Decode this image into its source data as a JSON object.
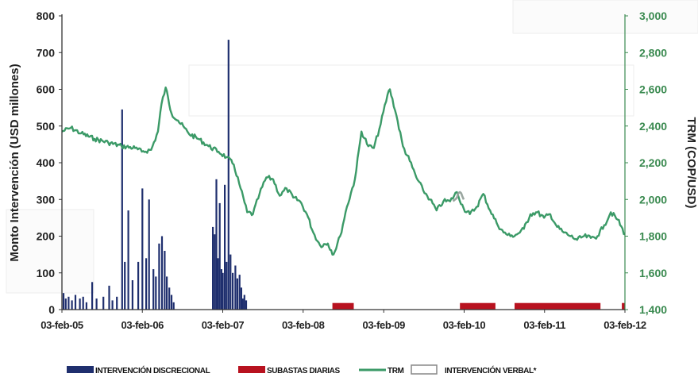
{
  "chart_data": {
    "type": "bar",
    "xlabel": "",
    "ylabel_left": "Monto Intervención (USD millones)",
    "ylabel_right": "TRM (COP/USD)",
    "xlim": [
      "2005-02-03",
      "2012-02-03"
    ],
    "ylim_left": [
      0,
      800
    ],
    "ylim_right": [
      1400,
      3000
    ],
    "x_ticks": [
      "03-feb-05",
      "03-feb-06",
      "03-feb-07",
      "03-feb-08",
      "03-feb-09",
      "03-feb-10",
      "03-feb-11",
      "03-feb-12"
    ],
    "y_ticks_left": [
      "0",
      "100",
      "200",
      "300",
      "400",
      "500",
      "600",
      "700",
      "800"
    ],
    "y_ticks_right": [
      "1,400",
      "1,600",
      "1,800",
      "2,000",
      "2,200",
      "2,400",
      "2,600",
      "2,800",
      "3,000"
    ],
    "grid": false,
    "legend_position": "bottom",
    "colors": {
      "discrecional": "#1f2f6e",
      "subastas": "#b8121f",
      "trm": "#3b9a67",
      "verbal": "#9aa6a0",
      "axis_left": "#222222",
      "axis_right": "#3a8a50"
    },
    "series": [
      {
        "name": "INTERVENCIÓN DISCRECIONAL",
        "type": "bar",
        "axis": "left",
        "x": [
          "2005-02-10",
          "2005-02-20",
          "2005-03-05",
          "2005-03-20",
          "2005-04-05",
          "2005-04-25",
          "2005-05-10",
          "2005-05-25",
          "2005-06-20",
          "2005-07-10",
          "2005-08-10",
          "2005-09-05",
          "2005-09-20",
          "2005-10-10",
          "2005-11-03",
          "2005-11-15",
          "2005-12-01",
          "2005-12-20",
          "2006-01-15",
          "2006-02-03",
          "2006-02-20",
          "2006-03-05",
          "2006-03-25",
          "2006-04-05",
          "2006-04-20",
          "2006-05-03",
          "2006-05-15",
          "2006-05-25",
          "2006-06-05",
          "2006-06-15",
          "2006-06-25",
          "2006-12-20",
          "2006-12-28",
          "2007-01-05",
          "2007-01-12",
          "2007-01-20",
          "2007-01-28",
          "2007-02-03",
          "2007-02-12",
          "2007-02-20",
          "2007-03-01",
          "2007-03-10",
          "2007-03-20",
          "2007-04-01",
          "2007-04-10",
          "2007-04-20",
          "2007-04-28",
          "2007-05-05",
          "2007-05-12",
          "2007-05-20"
        ],
        "values": [
          45,
          30,
          35,
          25,
          40,
          30,
          35,
          20,
          75,
          30,
          35,
          65,
          25,
          35,
          545,
          130,
          270,
          80,
          130,
          330,
          140,
          300,
          110,
          90,
          180,
          200,
          160,
          90,
          60,
          40,
          20,
          225,
          205,
          355,
          140,
          290,
          110,
          100,
          340,
          130,
          735,
          150,
          100,
          120,
          85,
          95,
          60,
          30,
          40,
          25
        ]
      },
      {
        "name": "SUBASTAS DIARIAS",
        "type": "band",
        "axis": "left",
        "height": 18,
        "ranges": [
          [
            "2008-06-15",
            "2008-09-20"
          ],
          [
            "2010-01-15",
            "2010-06-25"
          ],
          [
            "2010-09-20",
            "2011-10-15"
          ],
          [
            "2012-01-20",
            "2012-02-03"
          ]
        ]
      },
      {
        "name": "TRM",
        "type": "line",
        "axis": "right",
        "x": [
          "2005-02-03",
          "2005-03-15",
          "2005-05-01",
          "2005-07-01",
          "2005-09-01",
          "2005-11-01",
          "2006-01-01",
          "2006-02-01",
          "2006-03-15",
          "2006-04-15",
          "2006-05-01",
          "2006-05-20",
          "2006-06-15",
          "2006-07-15",
          "2006-09-01",
          "2006-10-15",
          "2006-12-01",
          "2007-01-15",
          "2007-02-20",
          "2007-03-25",
          "2007-04-25",
          "2007-05-25",
          "2007-06-20",
          "2007-07-20",
          "2007-08-20",
          "2007-09-20",
          "2007-10-20",
          "2007-11-20",
          "2007-12-20",
          "2008-01-20",
          "2008-02-20",
          "2008-03-20",
          "2008-04-20",
          "2008-05-25",
          "2008-06-20",
          "2008-07-20",
          "2008-08-20",
          "2008-09-25",
          "2008-10-25",
          "2008-11-25",
          "2008-12-20",
          "2009-01-20",
          "2009-02-20",
          "2009-03-03",
          "2009-04-01",
          "2009-05-01",
          "2009-06-01",
          "2009-07-01",
          "2009-08-01",
          "2009-09-01",
          "2009-10-01",
          "2009-11-01",
          "2009-12-01",
          "2010-01-01",
          "2010-02-01",
          "2010-03-01",
          "2010-04-01",
          "2010-05-01",
          "2010-06-01",
          "2010-07-01",
          "2010-08-01",
          "2010-09-01",
          "2010-10-01",
          "2010-11-01",
          "2010-12-01",
          "2011-01-01",
          "2011-02-01",
          "2011-03-01",
          "2011-04-01",
          "2011-05-01",
          "2011-06-01",
          "2011-07-01",
          "2011-08-01",
          "2011-09-01",
          "2011-10-01",
          "2011-11-01",
          "2011-12-01",
          "2012-01-01",
          "2012-02-03"
        ],
        "y": [
          2370,
          2390,
          2360,
          2330,
          2310,
          2290,
          2280,
          2260,
          2270,
          2370,
          2520,
          2610,
          2470,
          2430,
          2360,
          2330,
          2290,
          2260,
          2230,
          2190,
          2060,
          1930,
          1920,
          2030,
          2120,
          2110,
          2020,
          2060,
          2010,
          1990,
          1920,
          1820,
          1750,
          1760,
          1700,
          1800,
          1960,
          2110,
          2370,
          2290,
          2280,
          2410,
          2570,
          2600,
          2460,
          2290,
          2210,
          2120,
          2050,
          2000,
          1940,
          1990,
          1990,
          2040,
          1950,
          1920,
          1960,
          2030,
          1940,
          1870,
          1820,
          1800,
          1810,
          1840,
          1920,
          1930,
          1900,
          1920,
          1850,
          1820,
          1800,
          1780,
          1800,
          1790,
          1800,
          1860,
          1930,
          1890,
          1810
        ]
      },
      {
        "name": "INTERVENCIÓN VERBAL*",
        "type": "line",
        "axis": "right",
        "x": [
          "2009-12-15",
          "2010-01-01",
          "2010-01-15",
          "2010-02-01"
        ],
        "y": [
          1990,
          2010,
          2040,
          2000
        ]
      }
    ]
  }
}
